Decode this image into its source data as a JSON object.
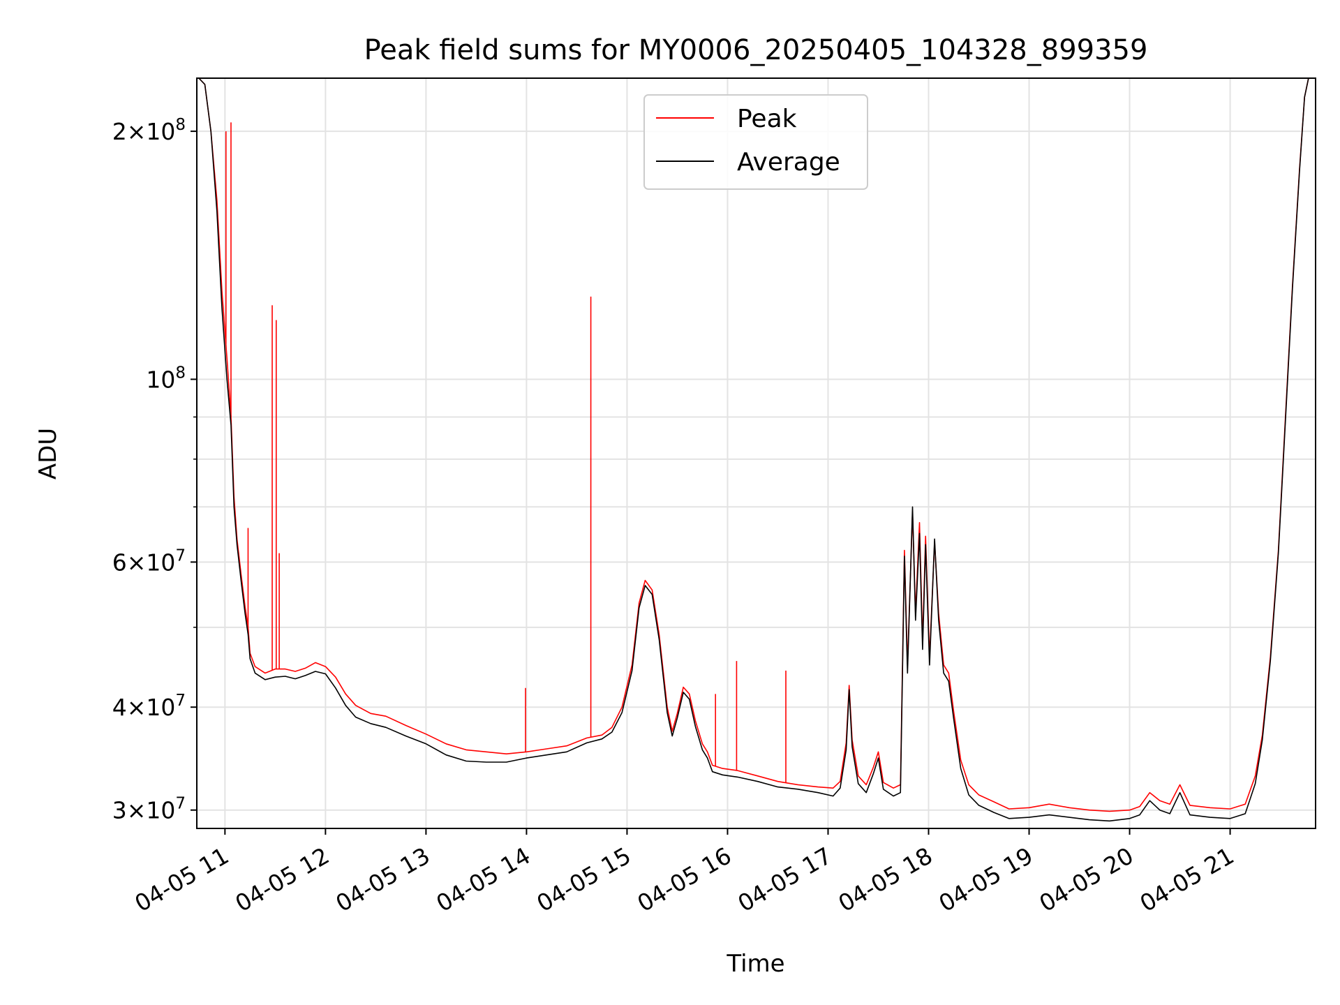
{
  "chart_data": {
    "type": "line",
    "title": "Peak field sums for MY0006_20250405_104328_899359",
    "xlabel": "Time",
    "ylabel": "ADU",
    "y_scale": "log",
    "ylim": [
      28500000,
      232000000
    ],
    "x_unit": "hours (2025-04-05, decimal)",
    "xlim": [
      10.72,
      21.85
    ],
    "grid": true,
    "legend_position": "upper center",
    "x_ticks": [
      {
        "value": 11,
        "label": "04-05 11"
      },
      {
        "value": 12,
        "label": "04-05 12"
      },
      {
        "value": 13,
        "label": "04-05 13"
      },
      {
        "value": 14,
        "label": "04-05 14"
      },
      {
        "value": 15,
        "label": "04-05 15"
      },
      {
        "value": 16,
        "label": "04-05 16"
      },
      {
        "value": 17,
        "label": "04-05 17"
      },
      {
        "value": 18,
        "label": "04-05 18"
      },
      {
        "value": 19,
        "label": "04-05 19"
      },
      {
        "value": 20,
        "label": "04-05 20"
      },
      {
        "value": 21,
        "label": "04-05 21"
      }
    ],
    "y_ticks": [
      {
        "value": 30000000,
        "mant": "3",
        "exp": "7"
      },
      {
        "value": 40000000,
        "mant": "4",
        "exp": "7"
      },
      {
        "value": 60000000,
        "mant": "6",
        "exp": "7"
      },
      {
        "value": 100000000,
        "mant": "",
        "exp": "8"
      },
      {
        "value": 200000000,
        "mant": "2",
        "exp": "8"
      }
    ],
    "y_minor_ticks": [
      50000000,
      70000000,
      80000000,
      90000000
    ],
    "series": [
      {
        "name": "Peak",
        "color": "#ff0000",
        "points": [
          [
            10.74,
            232000000
          ],
          [
            10.8,
            228000000
          ],
          [
            10.86,
            200000000
          ],
          [
            10.92,
            165000000
          ],
          [
            10.97,
            128000000
          ],
          [
            11.02,
            106000000
          ],
          [
            11.06,
            90000000
          ],
          [
            11.09,
            72000000
          ],
          [
            11.12,
            64000000
          ],
          [
            11.16,
            58000000
          ],
          [
            11.2,
            53000000
          ],
          [
            11.23,
            50000000
          ],
          [
            11.25,
            46500000
          ],
          [
            11.3,
            44800000
          ],
          [
            11.4,
            44000000
          ],
          [
            11.5,
            44500000
          ],
          [
            11.6,
            44500000
          ],
          [
            11.7,
            44200000
          ],
          [
            11.8,
            44600000
          ],
          [
            11.9,
            45300000
          ],
          [
            12.0,
            44800000
          ],
          [
            12.1,
            43500000
          ],
          [
            12.2,
            41500000
          ],
          [
            12.3,
            40200000
          ],
          [
            12.45,
            39300000
          ],
          [
            12.6,
            39000000
          ],
          [
            12.8,
            38000000
          ],
          [
            13.0,
            37100000
          ],
          [
            13.2,
            36100000
          ],
          [
            13.4,
            35500000
          ],
          [
            13.6,
            35300000
          ],
          [
            13.8,
            35100000
          ],
          [
            14.0,
            35300000
          ],
          [
            14.2,
            35600000
          ],
          [
            14.4,
            35900000
          ],
          [
            14.6,
            36700000
          ],
          [
            14.75,
            37000000
          ],
          [
            14.85,
            37800000
          ],
          [
            14.95,
            40000000
          ],
          [
            15.05,
            45000000
          ],
          [
            15.12,
            53500000
          ],
          [
            15.18,
            57000000
          ],
          [
            15.25,
            55500000
          ],
          [
            15.32,
            49000000
          ],
          [
            15.4,
            40000000
          ],
          [
            15.45,
            37400000
          ],
          [
            15.5,
            39300000
          ],
          [
            15.56,
            42300000
          ],
          [
            15.62,
            41500000
          ],
          [
            15.68,
            38500000
          ],
          [
            15.75,
            36100000
          ],
          [
            15.8,
            35300000
          ],
          [
            15.85,
            34000000
          ],
          [
            15.95,
            33700000
          ],
          [
            16.1,
            33500000
          ],
          [
            16.3,
            33000000
          ],
          [
            16.5,
            32500000
          ],
          [
            16.7,
            32200000
          ],
          [
            16.9,
            32000000
          ],
          [
            17.05,
            31900000
          ],
          [
            17.12,
            32500000
          ],
          [
            17.18,
            36200000
          ],
          [
            17.21,
            42500000
          ],
          [
            17.24,
            36500000
          ],
          [
            17.3,
            33000000
          ],
          [
            17.38,
            32200000
          ],
          [
            17.45,
            33800000
          ],
          [
            17.5,
            35300000
          ],
          [
            17.55,
            32400000
          ],
          [
            17.65,
            31900000
          ],
          [
            17.72,
            32200000
          ],
          [
            17.76,
            62000000
          ],
          [
            17.79,
            45000000
          ],
          [
            17.84,
            69000000
          ],
          [
            17.87,
            52000000
          ],
          [
            17.91,
            67000000
          ],
          [
            17.94,
            48000000
          ],
          [
            17.97,
            64500000
          ],
          [
            18.01,
            46000000
          ],
          [
            18.06,
            63500000
          ],
          [
            18.1,
            52000000
          ],
          [
            18.15,
            45000000
          ],
          [
            18.2,
            44000000
          ],
          [
            18.25,
            39500000
          ],
          [
            18.32,
            34500000
          ],
          [
            18.4,
            32200000
          ],
          [
            18.5,
            31300000
          ],
          [
            18.65,
            30700000
          ],
          [
            18.8,
            30100000
          ],
          [
            19.0,
            30200000
          ],
          [
            19.2,
            30500000
          ],
          [
            19.4,
            30200000
          ],
          [
            19.6,
            30000000
          ],
          [
            19.8,
            29900000
          ],
          [
            20.0,
            30000000
          ],
          [
            20.1,
            30300000
          ],
          [
            20.2,
            31500000
          ],
          [
            20.3,
            30800000
          ],
          [
            20.4,
            30500000
          ],
          [
            20.5,
            32200000
          ],
          [
            20.6,
            30400000
          ],
          [
            20.8,
            30200000
          ],
          [
            21.0,
            30100000
          ],
          [
            21.15,
            30500000
          ],
          [
            21.25,
            33000000
          ],
          [
            21.32,
            37000000
          ],
          [
            21.4,
            46000000
          ],
          [
            21.48,
            62000000
          ],
          [
            21.55,
            90000000
          ],
          [
            21.62,
            130000000
          ],
          [
            21.69,
            180000000
          ],
          [
            21.74,
            220000000
          ],
          [
            21.78,
            232000000
          ]
        ],
        "spikes": [
          [
            11.01,
            200000000
          ],
          [
            11.06,
            205000000
          ],
          [
            11.23,
            66000000
          ],
          [
            11.47,
            123000000
          ],
          [
            11.51,
            118000000
          ],
          [
            11.54,
            61500000
          ],
          [
            13.99,
            42200000
          ],
          [
            14.64,
            126000000
          ],
          [
            15.88,
            41500000
          ],
          [
            16.09,
            45500000
          ],
          [
            16.58,
            44300000
          ]
        ]
      },
      {
        "name": "Average",
        "color": "#000000",
        "points": [
          [
            10.74,
            232000000
          ],
          [
            10.8,
            228000000
          ],
          [
            10.86,
            200000000
          ],
          [
            10.92,
            160000000
          ],
          [
            10.97,
            122000000
          ],
          [
            11.02,
            100000000
          ],
          [
            11.06,
            88000000
          ],
          [
            11.09,
            70000000
          ],
          [
            11.12,
            63000000
          ],
          [
            11.16,
            57000000
          ],
          [
            11.2,
            52000000
          ],
          [
            11.23,
            49000000
          ],
          [
            11.25,
            45800000
          ],
          [
            11.3,
            44000000
          ],
          [
            11.4,
            43200000
          ],
          [
            11.5,
            43500000
          ],
          [
            11.6,
            43600000
          ],
          [
            11.7,
            43300000
          ],
          [
            11.8,
            43700000
          ],
          [
            11.9,
            44200000
          ],
          [
            12.0,
            43900000
          ],
          [
            12.1,
            42200000
          ],
          [
            12.2,
            40200000
          ],
          [
            12.3,
            38900000
          ],
          [
            12.45,
            38200000
          ],
          [
            12.6,
            37800000
          ],
          [
            12.8,
            36900000
          ],
          [
            13.0,
            36100000
          ],
          [
            13.2,
            35000000
          ],
          [
            13.4,
            34400000
          ],
          [
            13.6,
            34300000
          ],
          [
            13.8,
            34300000
          ],
          [
            14.0,
            34700000
          ],
          [
            14.2,
            35000000
          ],
          [
            14.4,
            35300000
          ],
          [
            14.6,
            36200000
          ],
          [
            14.75,
            36600000
          ],
          [
            14.85,
            37300000
          ],
          [
            14.95,
            39400000
          ],
          [
            15.05,
            44300000
          ],
          [
            15.12,
            52800000
          ],
          [
            15.18,
            56200000
          ],
          [
            15.25,
            54800000
          ],
          [
            15.32,
            48300000
          ],
          [
            15.4,
            39400000
          ],
          [
            15.45,
            36900000
          ],
          [
            15.5,
            38800000
          ],
          [
            15.56,
            41700000
          ],
          [
            15.62,
            40900000
          ],
          [
            15.68,
            37900000
          ],
          [
            15.75,
            35500000
          ],
          [
            15.8,
            34700000
          ],
          [
            15.85,
            33400000
          ],
          [
            15.95,
            33100000
          ],
          [
            16.1,
            32900000
          ],
          [
            16.3,
            32500000
          ],
          [
            16.5,
            32000000
          ],
          [
            16.7,
            31800000
          ],
          [
            16.9,
            31500000
          ],
          [
            17.05,
            31200000
          ],
          [
            17.12,
            31900000
          ],
          [
            17.18,
            35500000
          ],
          [
            17.21,
            42000000
          ],
          [
            17.24,
            35800000
          ],
          [
            17.3,
            32300000
          ],
          [
            17.38,
            31500000
          ],
          [
            17.45,
            33200000
          ],
          [
            17.5,
            34700000
          ],
          [
            17.55,
            31800000
          ],
          [
            17.65,
            31200000
          ],
          [
            17.72,
            31500000
          ],
          [
            17.76,
            61000000
          ],
          [
            17.79,
            44000000
          ],
          [
            17.84,
            70000000
          ],
          [
            17.87,
            51000000
          ],
          [
            17.91,
            65000000
          ],
          [
            17.94,
            47000000
          ],
          [
            17.97,
            63000000
          ],
          [
            18.01,
            45000000
          ],
          [
            18.06,
            64000000
          ],
          [
            18.1,
            51000000
          ],
          [
            18.15,
            44000000
          ],
          [
            18.2,
            43000000
          ],
          [
            18.25,
            38700000
          ],
          [
            18.32,
            33700000
          ],
          [
            18.4,
            31300000
          ],
          [
            18.5,
            30400000
          ],
          [
            18.65,
            29800000
          ],
          [
            18.8,
            29300000
          ],
          [
            19.0,
            29400000
          ],
          [
            19.2,
            29600000
          ],
          [
            19.4,
            29400000
          ],
          [
            19.6,
            29200000
          ],
          [
            19.8,
            29100000
          ],
          [
            20.0,
            29300000
          ],
          [
            20.1,
            29600000
          ],
          [
            20.2,
            30800000
          ],
          [
            20.3,
            30000000
          ],
          [
            20.4,
            29700000
          ],
          [
            20.5,
            31500000
          ],
          [
            20.6,
            29600000
          ],
          [
            20.8,
            29400000
          ],
          [
            21.0,
            29300000
          ],
          [
            21.15,
            29700000
          ],
          [
            21.25,
            32300000
          ],
          [
            21.32,
            36500000
          ],
          [
            21.4,
            45500000
          ],
          [
            21.48,
            61500000
          ],
          [
            21.55,
            89000000
          ],
          [
            21.62,
            129000000
          ],
          [
            21.69,
            179000000
          ],
          [
            21.74,
            220000000
          ],
          [
            21.78,
            232000000
          ]
        ],
        "spikes": []
      }
    ]
  }
}
